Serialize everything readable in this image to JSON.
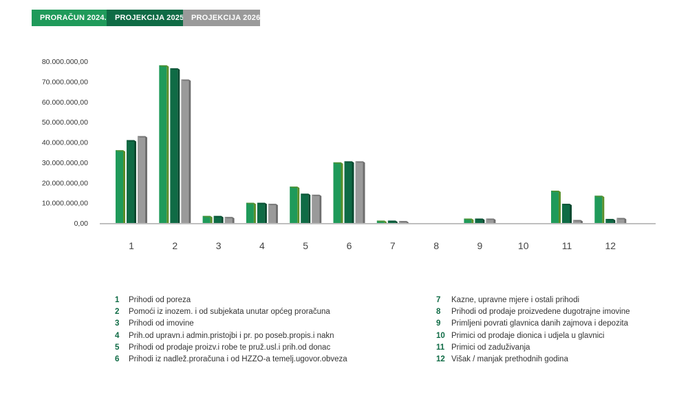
{
  "tabs": {
    "t2024": "PRORAČUN 2024.",
    "t2025": "PROJEKCIJA 2025.",
    "t2026": "PROJEKCIJA 2026."
  },
  "colors": {
    "s2024": "#1f9a5a",
    "s2025": "#0f6b45",
    "s2026": "#9a9a9a",
    "axis": "#999999",
    "text": "#333333"
  },
  "chart_data": {
    "type": "bar",
    "categories": [
      "1",
      "2",
      "3",
      "4",
      "5",
      "6",
      "7",
      "8",
      "9",
      "10",
      "11",
      "12"
    ],
    "series": [
      {
        "values": [
          36000000,
          78000000,
          3500000,
          10000000,
          18000000,
          30000000,
          1200000,
          0,
          2200000,
          0,
          16000000,
          13500000
        ]
      },
      {
        "values": [
          41000000,
          76500000,
          3500000,
          10000000,
          14500000,
          30500000,
          1200000,
          0,
          2200000,
          0,
          9500000,
          2000000
        ]
      },
      {
        "values": [
          43000000,
          71000000,
          3000000,
          9500000,
          14000000,
          30500000,
          1000000,
          0,
          2200000,
          0,
          1500000,
          2500000
        ]
      }
    ],
    "yticks": [
      "0,00",
      "10.000.000,00",
      "20.000.000,00",
      "30.000.000,00",
      "40.000.000,00",
      "50.000.000,00",
      "60.000.000,00",
      "70.000.000,00",
      "80.000.000,00"
    ],
    "ylim": [
      0,
      80000000
    ]
  },
  "legend": {
    "left": [
      {
        "num": "1",
        "label": "Prihodi od poreza"
      },
      {
        "num": "2",
        "label": "Pomoći iz inozem. i od subjekata unutar općeg proračuna"
      },
      {
        "num": "3",
        "label": "Prihodi od imovine"
      },
      {
        "num": "4",
        "label": "Prih.od upravn.i admin.pristojbi i pr. po poseb.propis.i nakn"
      },
      {
        "num": "5",
        "label": "Prihodi od prodaje proizv.i robe te pruž.usl.i prih.od donac"
      },
      {
        "num": "6",
        "label": "Prihodi iz nadlež.proračuna i od HZZO-a temelj.ugovor.obveza"
      }
    ],
    "right": [
      {
        "num": "7",
        "label": "Kazne, upravne mjere i ostali prihodi"
      },
      {
        "num": "8",
        "label": "Prihodi od prodaje proizvedene dugotrajne imovine"
      },
      {
        "num": "9",
        "label": "Primljeni povrati glavnica danih zajmova i depozita"
      },
      {
        "num": "10",
        "label": "Primici od prodaje dionica i udjela u glavnici"
      },
      {
        "num": "11",
        "label": "Primici od zaduživanja"
      },
      {
        "num": "12",
        "label": "Višak / manjak prethodnih godina"
      }
    ]
  }
}
